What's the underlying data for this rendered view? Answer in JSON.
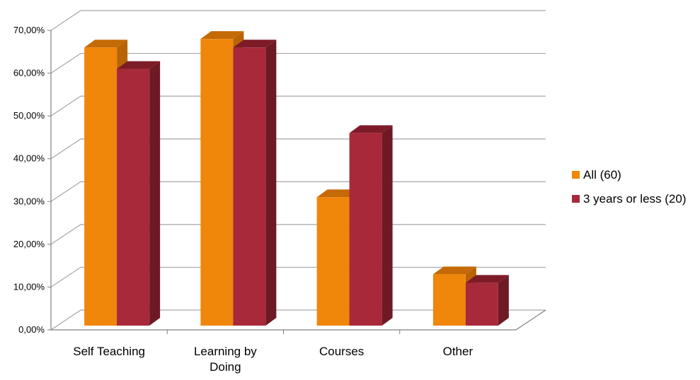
{
  "chart_data": {
    "type": "bar",
    "categories": [
      "Self Teaching",
      "Learning by Doing",
      "Courses",
      "Other"
    ],
    "series": [
      {
        "name": "All (60)",
        "values": [
          65,
          67,
          30,
          12
        ]
      },
      {
        "name": "3 years or less (20)",
        "values": [
          60,
          65,
          45,
          10
        ]
      }
    ],
    "y_ticks": [
      "0,00%",
      "10,00%",
      "20,00%",
      "30,00%",
      "40,00%",
      "50,00%",
      "60,00%",
      "70,00%"
    ],
    "ylim": [
      0,
      70
    ],
    "grid": true,
    "legend_position": "right",
    "colors": {
      "series": [
        "#F0860A",
        "#A8293A"
      ],
      "series_top": [
        "#C46A06",
        "#7E1B28"
      ],
      "series_side": [
        "#B86404",
        "#6E1A25"
      ],
      "grid": "#A6A6A6",
      "axis": "#808080"
    }
  }
}
